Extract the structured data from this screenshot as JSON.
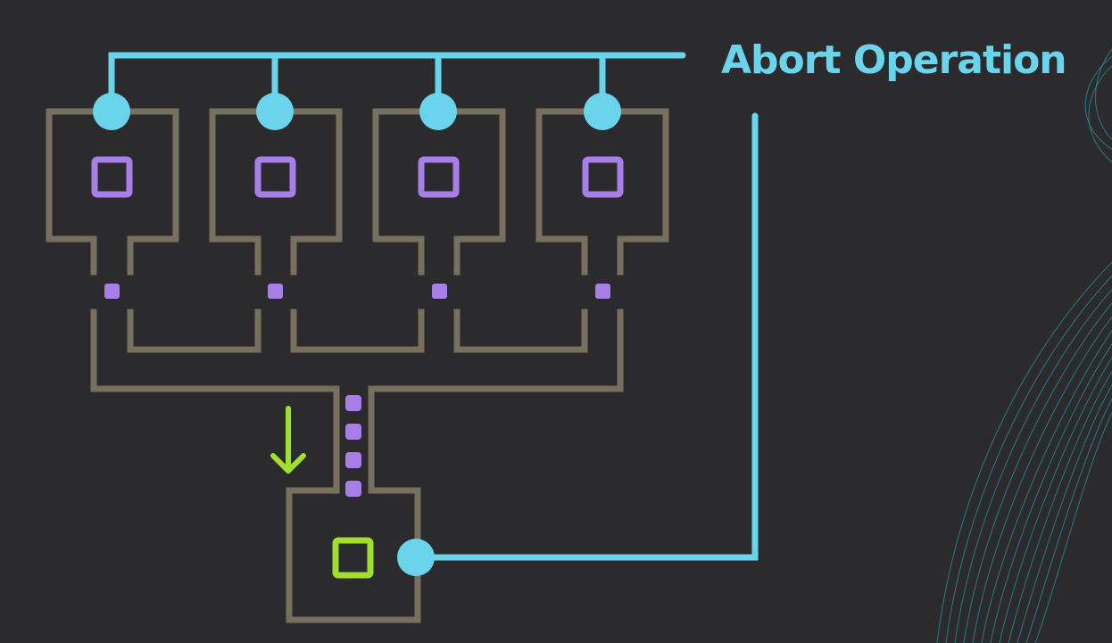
{
  "title": "Abort Operation",
  "colors": {
    "background": "#2b2a2d",
    "wire": "#6ad4ec",
    "pipe": "#77705f",
    "worker_square": "#a87ee8",
    "output_square": "#a2de2c",
    "arrow": "#a2de2c"
  },
  "workers": [
    {
      "id": "worker-1",
      "icon": "square-outline-icon"
    },
    {
      "id": "worker-2",
      "icon": "square-outline-icon"
    },
    {
      "id": "worker-3",
      "icon": "square-outline-icon"
    },
    {
      "id": "worker-4",
      "icon": "square-outline-icon"
    }
  ],
  "output": {
    "icon": "square-outline-icon"
  },
  "flow_arrow": {
    "icon": "arrow-down-icon"
  }
}
